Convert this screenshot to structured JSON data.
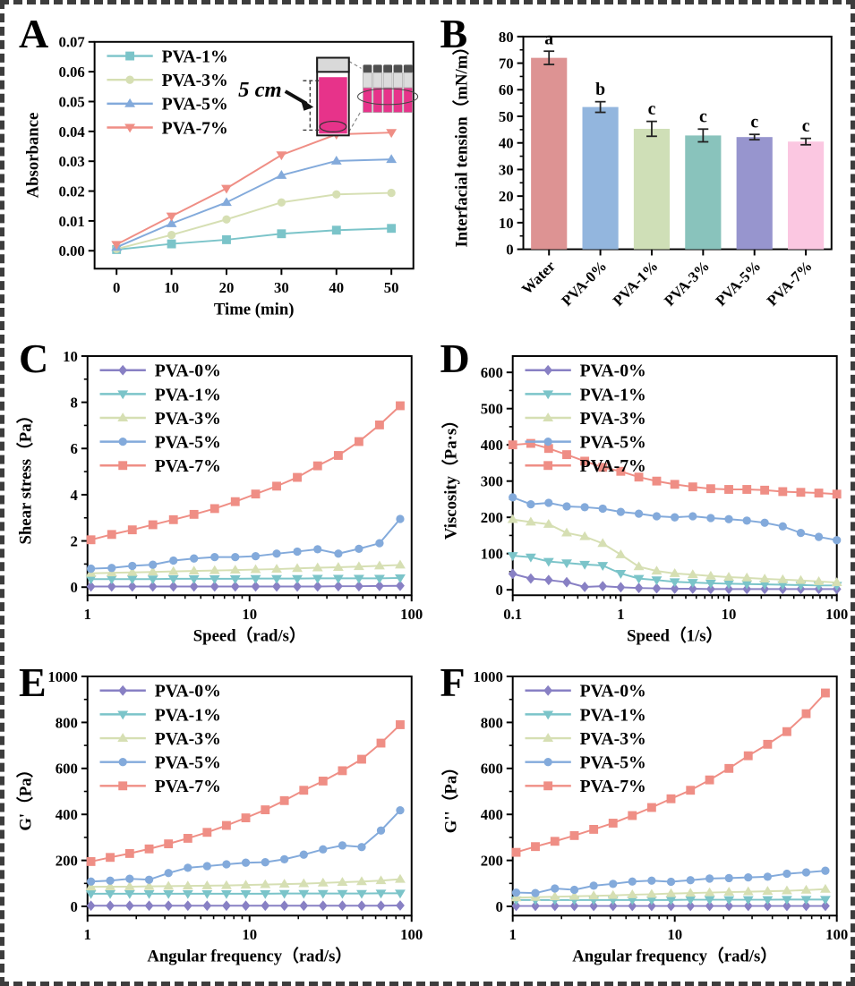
{
  "figure": {
    "border_color": "#3d3d3d",
    "background": "#ffffff"
  },
  "panels": [
    {
      "letter": "A"
    },
    {
      "letter": "B"
    },
    {
      "letter": "C"
    },
    {
      "letter": "D"
    },
    {
      "letter": "E"
    },
    {
      "letter": "F"
    }
  ],
  "inset": {
    "label": "5 cm",
    "liquid_color": "#e7338a"
  },
  "chart_data": [
    {
      "id": "A",
      "type": "line",
      "xscale": "linear",
      "xlabel": "Time (min)",
      "ylabel": "Absorbance",
      "xlim": [
        -4,
        54
      ],
      "ylim": [
        -0.006,
        0.07
      ],
      "xticks": [
        0,
        10,
        20,
        30,
        40,
        50
      ],
      "xtick_labels": [
        "0",
        "10",
        "20",
        "30",
        "40",
        "50"
      ],
      "yticks": [
        0,
        0.01,
        0.02,
        0.03,
        0.04,
        0.05,
        0.06,
        0.07
      ],
      "ytick_labels": [
        "0.00",
        "0.01",
        "0.02",
        "0.03",
        "0.04",
        "0.05",
        "0.06",
        "0.07"
      ],
      "x": [
        0,
        10,
        20,
        30,
        40,
        50
      ],
      "series": [
        {
          "name": "PVA-1%",
          "color": "#7bc4c9",
          "marker": "square",
          "values": [
            0.0004,
            0.0023,
            0.0037,
            0.0057,
            0.0069,
            0.0075
          ]
        },
        {
          "name": "PVA-3%",
          "color": "#d6dfb3",
          "marker": "circle",
          "values": [
            0.0006,
            0.0053,
            0.0105,
            0.0162,
            0.0189,
            0.0194
          ]
        },
        {
          "name": "PVA-5%",
          "color": "#83aadb",
          "marker": "triangle-up",
          "values": [
            0.0012,
            0.0091,
            0.0162,
            0.0253,
            0.0301,
            0.0306
          ]
        },
        {
          "name": "PVA-7%",
          "color": "#ef8e85",
          "marker": "triangle-down",
          "values": [
            0.0021,
            0.0116,
            0.0209,
            0.0321,
            0.039,
            0.0396
          ]
        }
      ]
    },
    {
      "id": "B",
      "type": "bar",
      "xlabel": "",
      "ylabel": "Interfacial tension（mN/m）",
      "ylim": [
        0,
        80
      ],
      "yticks": [
        0,
        10,
        20,
        30,
        40,
        50,
        60,
        70,
        80
      ],
      "ytick_labels": [
        "0",
        "10",
        "20",
        "30",
        "40",
        "50",
        "60",
        "70",
        "80"
      ],
      "categories": [
        "Water",
        "PVA-0%",
        "PVA-1%",
        "PVA-3%",
        "PVA-5%",
        "PVA-7%"
      ],
      "values": [
        72,
        53.5,
        45.3,
        42.8,
        42.2,
        40.5
      ],
      "errors": [
        2.5,
        2.0,
        2.8,
        2.4,
        1.0,
        1.2
      ],
      "sig_letters": [
        "a",
        "b",
        "c",
        "c",
        "c",
        "c"
      ],
      "bar_colors": [
        "#dd9393",
        "#93b6de",
        "#cfdfb7",
        "#89c3bc",
        "#9795ce",
        "#fbc7e1"
      ]
    },
    {
      "id": "C",
      "type": "line",
      "xscale": "log",
      "xlabel": "Speed（rad/s）",
      "ylabel": "Shear stress（Pa）",
      "xlim": [
        1,
        100
      ],
      "ylim": [
        -0.35,
        10
      ],
      "xticks": [
        1,
        10,
        100
      ],
      "xtick_labels": [
        "1",
        "10",
        "100"
      ],
      "yticks": [
        0,
        2,
        4,
        6,
        8,
        10
      ],
      "ytick_labels": [
        "0",
        "2",
        "4",
        "6",
        "8",
        "10"
      ],
      "x": [
        1.05,
        1.41,
        1.89,
        2.53,
        3.39,
        4.54,
        6.09,
        8.16,
        10.9,
        14.7,
        19.7,
        26.3,
        35.3,
        47.3,
        63.4,
        85
      ],
      "series": [
        {
          "name": "PVA-0%",
          "color": "#8880c4",
          "marker": "diamond",
          "values": [
            0.03,
            0.03,
            0.03,
            0.03,
            0.03,
            0.03,
            0.03,
            0.03,
            0.03,
            0.03,
            0.03,
            0.03,
            0.04,
            0.04,
            0.05,
            0.06
          ]
        },
        {
          "name": "PVA-1%",
          "color": "#7bc4c9",
          "marker": "triangle-down",
          "values": [
            0.35,
            0.35,
            0.35,
            0.35,
            0.36,
            0.36,
            0.36,
            0.36,
            0.37,
            0.37,
            0.37,
            0.38,
            0.38,
            0.38,
            0.38,
            0.4
          ]
        },
        {
          "name": "PVA-3%",
          "color": "#d6dfb3",
          "marker": "triangle-up",
          "values": [
            0.6,
            0.62,
            0.64,
            0.66,
            0.68,
            0.7,
            0.72,
            0.74,
            0.76,
            0.78,
            0.81,
            0.84,
            0.86,
            0.89,
            0.92,
            0.96
          ]
        },
        {
          "name": "PVA-5%",
          "color": "#83aadb",
          "marker": "circle",
          "values": [
            0.8,
            0.83,
            0.92,
            0.97,
            1.15,
            1.24,
            1.3,
            1.3,
            1.34,
            1.45,
            1.54,
            1.64,
            1.45,
            1.66,
            1.9,
            2.95
          ]
        },
        {
          "name": "PVA-7%",
          "color": "#ef8e85",
          "marker": "square",
          "values": [
            2.05,
            2.28,
            2.48,
            2.7,
            2.92,
            3.15,
            3.4,
            3.7,
            4.03,
            4.37,
            4.75,
            5.25,
            5.7,
            6.3,
            7.02,
            7.85
          ]
        }
      ]
    },
    {
      "id": "D",
      "type": "line",
      "xscale": "log",
      "xlabel": "Speed（1/s）",
      "ylabel": "Viscosity（Pa·s）",
      "xlim": [
        0.1,
        100
      ],
      "ylim": [
        -15,
        645
      ],
      "xticks": [
        0.1,
        1,
        10,
        100
      ],
      "xtick_labels": [
        "0.1",
        "1",
        "10",
        "100"
      ],
      "yticks": [
        0,
        100,
        200,
        300,
        400,
        500,
        600
      ],
      "ytick_labels": [
        "0",
        "100",
        "200",
        "300",
        "400",
        "500",
        "600"
      ],
      "x": [
        0.1,
        0.147,
        0.215,
        0.316,
        0.464,
        0.681,
        1,
        1.47,
        2.15,
        3.16,
        4.64,
        6.81,
        10,
        14.7,
        21.5,
        31.6,
        46.4,
        68.1,
        100
      ],
      "series": [
        {
          "name": "PVA-0%",
          "color": "#8880c4",
          "marker": "diamond",
          "values": [
            44,
            31,
            27,
            21,
            8,
            10,
            7,
            5,
            4,
            3,
            3,
            2,
            2,
            2,
            2,
            2,
            2,
            2,
            2
          ]
        },
        {
          "name": "PVA-1%",
          "color": "#7bc4c9",
          "marker": "triangle-down",
          "values": [
            94,
            90,
            78,
            74,
            70,
            67,
            45,
            31,
            27,
            22,
            20,
            18,
            17,
            16,
            15,
            14,
            13,
            12,
            12
          ]
        },
        {
          "name": "PVA-3%",
          "color": "#d6dfb3",
          "marker": "triangle-up",
          "values": [
            194,
            187,
            181,
            157,
            147,
            128,
            97,
            64,
            52,
            45,
            42,
            38,
            35,
            33,
            30,
            28,
            26,
            23,
            20
          ]
        },
        {
          "name": "PVA-5%",
          "color": "#83aadb",
          "marker": "circle",
          "values": [
            255,
            236,
            240,
            230,
            228,
            224,
            215,
            210,
            203,
            200,
            203,
            198,
            195,
            191,
            185,
            175,
            157,
            146,
            137
          ]
        },
        {
          "name": "PVA-7%",
          "color": "#ef8e85",
          "marker": "square",
          "values": [
            400,
            404,
            390,
            373,
            355,
            338,
            327,
            311,
            300,
            291,
            284,
            279,
            277,
            277,
            275,
            271,
            269,
            267,
            264
          ]
        }
      ]
    },
    {
      "id": "E",
      "type": "line",
      "xscale": "log",
      "xlabel": "Angular frequency（rad/s）",
      "ylabel": "G'（Pa）",
      "xlim": [
        1,
        100
      ],
      "ylim": [
        -40,
        1000
      ],
      "xticks": [
        1,
        10,
        100
      ],
      "xtick_labels": [
        "1",
        "10",
        "100"
      ],
      "yticks": [
        0,
        200,
        400,
        600,
        800,
        1000
      ],
      "ytick_labels": [
        "0",
        "200",
        "400",
        "600",
        "800",
        "1000"
      ],
      "x": [
        1.05,
        1.38,
        1.82,
        2.4,
        3.16,
        4.16,
        5.47,
        7.2,
        9.48,
        12.5,
        16.4,
        21.6,
        28.4,
        37.4,
        49.2,
        64.7,
        85
      ],
      "series": [
        {
          "name": "PVA-0%",
          "color": "#8880c4",
          "marker": "diamond",
          "values": [
            3,
            3,
            3,
            3,
            3,
            3,
            3,
            3,
            3,
            3,
            3,
            3,
            3,
            3,
            3,
            3,
            4
          ]
        },
        {
          "name": "PVA-1%",
          "color": "#7bc4c9",
          "marker": "triangle-down",
          "values": [
            55,
            55,
            55,
            55,
            55,
            55,
            55,
            55,
            55,
            55,
            56,
            56,
            56,
            56,
            56,
            57,
            57
          ]
        },
        {
          "name": "PVA-3%",
          "color": "#d6dfb3",
          "marker": "triangle-up",
          "values": [
            85,
            86,
            86,
            87,
            88,
            89,
            90,
            91,
            93,
            95,
            97,
            99,
            102,
            105,
            108,
            112,
            118
          ]
        },
        {
          "name": "PVA-5%",
          "color": "#83aadb",
          "marker": "circle",
          "values": [
            108,
            112,
            120,
            116,
            145,
            168,
            175,
            183,
            190,
            192,
            205,
            225,
            248,
            265,
            258,
            330,
            418
          ]
        },
        {
          "name": "PVA-7%",
          "color": "#ef8e85",
          "marker": "square",
          "values": [
            195,
            213,
            230,
            250,
            272,
            296,
            322,
            352,
            385,
            420,
            460,
            505,
            545,
            590,
            640,
            710,
            790
          ]
        }
      ]
    },
    {
      "id": "F",
      "type": "line",
      "xscale": "log",
      "xlabel": "Angular frequency（rad/s）",
      "ylabel": "G''（Pa）",
      "xlim": [
        1,
        100
      ],
      "ylim": [
        -40,
        1000
      ],
      "xticks": [
        1,
        10,
        100
      ],
      "xtick_labels": [
        "1",
        "10",
        "100"
      ],
      "yticks": [
        0,
        200,
        400,
        600,
        800,
        1000
      ],
      "ytick_labels": [
        "0",
        "200",
        "400",
        "600",
        "800",
        "1000"
      ],
      "x": [
        1.05,
        1.38,
        1.82,
        2.4,
        3.16,
        4.16,
        5.47,
        7.2,
        9.48,
        12.5,
        16.4,
        21.6,
        28.4,
        37.4,
        49.2,
        64.7,
        85
      ],
      "series": [
        {
          "name": "PVA-0%",
          "color": "#8880c4",
          "marker": "diamond",
          "values": [
            2,
            2,
            2,
            2,
            2,
            2,
            2,
            2,
            2,
            2,
            2,
            2,
            2,
            2,
            2,
            2,
            2
          ]
        },
        {
          "name": "PVA-1%",
          "color": "#7bc4c9",
          "marker": "triangle-down",
          "values": [
            28,
            28,
            28,
            28,
            28,
            28,
            28,
            28,
            28,
            29,
            29,
            29,
            29,
            29,
            30,
            30,
            30
          ]
        },
        {
          "name": "PVA-3%",
          "color": "#d6dfb3",
          "marker": "triangle-up",
          "values": [
            38,
            40,
            42,
            44,
            46,
            48,
            51,
            53,
            56,
            58,
            60,
            62,
            64,
            66,
            68,
            71,
            75
          ]
        },
        {
          "name": "PVA-5%",
          "color": "#83aadb",
          "marker": "circle",
          "values": [
            60,
            58,
            78,
            72,
            90,
            98,
            108,
            112,
            107,
            114,
            121,
            123,
            126,
            129,
            142,
            148,
            155
          ]
        },
        {
          "name": "PVA-7%",
          "color": "#ef8e85",
          "marker": "square",
          "values": [
            235,
            260,
            283,
            308,
            335,
            362,
            395,
            430,
            468,
            505,
            550,
            600,
            655,
            705,
            760,
            838,
            928
          ]
        }
      ]
    }
  ]
}
